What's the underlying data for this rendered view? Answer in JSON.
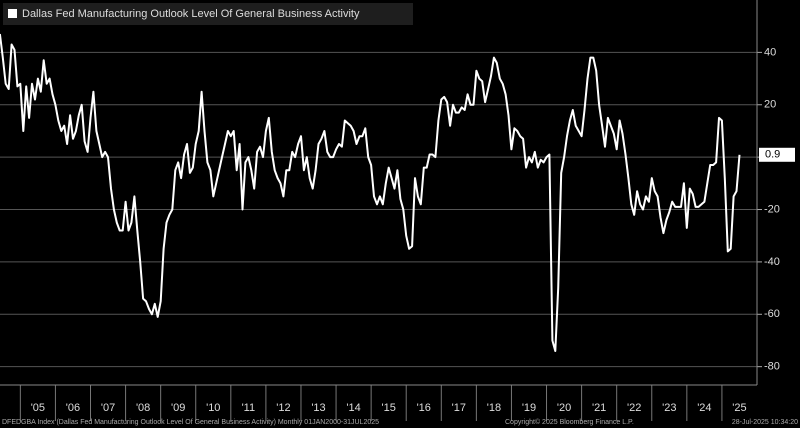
{
  "chart_data": {
    "type": "line",
    "series": [
      {
        "name": "Dallas Fed Manufacturing Outlook Level Of General Business Activity",
        "color": "#ffffff",
        "values": [
          47,
          38,
          28,
          26,
          43,
          41,
          27,
          28,
          10,
          27,
          15,
          28,
          22,
          30,
          25,
          37,
          28,
          30,
          24,
          20,
          14,
          10,
          12,
          5,
          16,
          7,
          10,
          16,
          20,
          6,
          2,
          15,
          25,
          10,
          5,
          0,
          2,
          0,
          -12,
          -20,
          -25,
          -28,
          -28,
          -17,
          -28,
          -25,
          -15,
          -28,
          -40,
          -54,
          -55,
          -58,
          -60,
          -56,
          -61,
          -55,
          -35,
          -25,
          -22,
          -20,
          -5,
          -2,
          -8,
          1,
          5,
          -6,
          -4,
          5,
          10,
          25,
          10,
          -2,
          -5,
          -15,
          -10,
          -5,
          0,
          5,
          10,
          8,
          10,
          -5,
          5,
          -20,
          -2,
          0,
          -5,
          -12,
          2,
          4,
          0,
          10,
          15,
          2,
          -5,
          -8,
          -10,
          -15,
          -5,
          -5,
          2,
          0,
          5,
          8,
          -5,
          0,
          -8,
          -12,
          -5,
          5,
          7,
          10,
          2,
          0,
          0,
          3,
          5,
          4,
          14,
          13,
          12,
          10,
          5,
          8,
          8,
          11,
          0,
          -3,
          -15,
          -18,
          -15,
          -18,
          -10,
          -4,
          -8,
          -12,
          -5,
          -16,
          -20,
          -30,
          -35,
          -34,
          -8,
          -15,
          -18,
          -4,
          -4,
          1,
          1,
          0,
          14,
          22,
          23,
          21,
          12,
          20,
          17,
          17,
          19,
          18,
          24,
          20,
          20,
          33,
          30,
          29,
          21,
          26,
          31,
          38,
          36,
          30,
          28,
          24,
          16,
          3,
          11,
          10,
          8,
          7,
          -4,
          0,
          -2,
          2,
          -4,
          -1,
          -2,
          0,
          1,
          -70,
          -74,
          -50,
          -6,
          0,
          8,
          14,
          18,
          12,
          10,
          8,
          18,
          30,
          38,
          38,
          33,
          20,
          12,
          4,
          15,
          12,
          9,
          3,
          14,
          9,
          1,
          -8,
          -18,
          -22,
          -13,
          -18,
          -20,
          -15,
          -17,
          -8,
          -13,
          -15,
          -23,
          -29,
          -24,
          -21,
          -17,
          -19,
          -19,
          -19,
          -10,
          -27,
          -12,
          -14,
          -19,
          -19,
          -18,
          -17,
          -10,
          -3,
          -3,
          -2,
          15,
          14,
          -8,
          -36,
          -35,
          -15,
          -13,
          0.9
        ]
      }
    ],
    "x": [
      2004.417,
      2004.5,
      2004.583,
      2004.667,
      2004.75,
      2004.833,
      2004.917,
      2005,
      2005.083,
      2005.167,
      2005.25,
      2005.333,
      2005.417,
      2005.5,
      2005.583,
      2005.667,
      2005.75,
      2005.833,
      2005.917,
      2006,
      2006.083,
      2006.167,
      2006.25,
      2006.333,
      2006.417,
      2006.5,
      2006.583,
      2006.667,
      2006.75,
      2006.833,
      2006.917,
      2007,
      2007.083,
      2007.167,
      2007.25,
      2007.333,
      2007.417,
      2007.5,
      2007.583,
      2007.667,
      2007.75,
      2007.833,
      2007.917,
      2008,
      2008.083,
      2008.167,
      2008.25,
      2008.333,
      2008.417,
      2008.5,
      2008.583,
      2008.667,
      2008.75,
      2008.833,
      2008.917,
      2009,
      2009.083,
      2009.167,
      2009.25,
      2009.333,
      2009.417,
      2009.5,
      2009.583,
      2009.667,
      2009.75,
      2009.833,
      2009.917,
      2010,
      2010.083,
      2010.167,
      2010.25,
      2010.333,
      2010.417,
      2010.5,
      2010.583,
      2010.667,
      2010.75,
      2010.833,
      2010.917,
      2011,
      2011.083,
      2011.167,
      2011.25,
      2011.333,
      2011.417,
      2011.5,
      2011.583,
      2011.667,
      2011.75,
      2011.833,
      2011.917,
      2012,
      2012.083,
      2012.167,
      2012.25,
      2012.333,
      2012.417,
      2012.5,
      2012.583,
      2012.667,
      2012.75,
      2012.833,
      2012.917,
      2013,
      2013.083,
      2013.167,
      2013.25,
      2013.333,
      2013.417,
      2013.5,
      2013.583,
      2013.667,
      2013.75,
      2013.833,
      2013.917,
      2014,
      2014.083,
      2014.167,
      2014.25,
      2014.333,
      2014.417,
      2014.5,
      2014.583,
      2014.667,
      2014.75,
      2014.833,
      2014.917,
      2015,
      2015.083,
      2015.167,
      2015.25,
      2015.333,
      2015.417,
      2015.5,
      2015.583,
      2015.667,
      2015.75,
      2015.833,
      2015.917,
      2016,
      2016.083,
      2016.167,
      2016.25,
      2016.333,
      2016.417,
      2016.5,
      2016.583,
      2016.667,
      2016.75,
      2016.833,
      2016.917,
      2017,
      2017.083,
      2017.167,
      2017.25,
      2017.333,
      2017.417,
      2017.5,
      2017.583,
      2017.667,
      2017.75,
      2017.833,
      2017.917,
      2018,
      2018.083,
      2018.167,
      2018.25,
      2018.333,
      2018.417,
      2018.5,
      2018.583,
      2018.667,
      2018.75,
      2018.833,
      2018.917,
      2019,
      2019.083,
      2019.167,
      2019.25,
      2019.333,
      2019.417,
      2019.5,
      2019.583,
      2019.667,
      2019.75,
      2019.833,
      2019.917,
      2020,
      2020.083,
      2020.167,
      2020.25,
      2020.333,
      2020.417,
      2020.5,
      2020.583,
      2020.667,
      2020.75,
      2020.833,
      2020.917,
      2021,
      2021.083,
      2021.167,
      2021.25,
      2021.333,
      2021.417,
      2021.5,
      2021.583,
      2021.667,
      2021.75,
      2021.833,
      2021.917,
      2022,
      2022.083,
      2022.167,
      2022.25,
      2022.333,
      2022.417,
      2022.5,
      2022.583,
      2022.667,
      2022.75,
      2022.833,
      2022.917,
      2023,
      2023.083,
      2023.167,
      2023.25,
      2023.333,
      2023.417,
      2023.5,
      2023.583,
      2023.667,
      2023.75,
      2023.833,
      2023.917,
      2024,
      2024.083,
      2024.167,
      2024.25,
      2024.333,
      2024.417,
      2024.5,
      2024.583,
      2024.667,
      2024.75,
      2024.833,
      2024.917,
      2025,
      2025.083,
      2025.167,
      2025.25,
      2025.333,
      2025.417,
      2025.5
    ],
    "xlim": [
      2004.42,
      2026
    ],
    "xticks": [
      {
        "value": 2005,
        "label": "'05"
      },
      {
        "value": 2006,
        "label": "'06"
      },
      {
        "value": 2007,
        "label": "'07"
      },
      {
        "value": 2008,
        "label": "'08"
      },
      {
        "value": 2009,
        "label": "'09"
      },
      {
        "value": 2010,
        "label": "'10"
      },
      {
        "value": 2011,
        "label": "'11"
      },
      {
        "value": 2012,
        "label": "'12"
      },
      {
        "value": 2013,
        "label": "'13"
      },
      {
        "value": 2014,
        "label": "'14"
      },
      {
        "value": 2015,
        "label": "'15"
      },
      {
        "value": 2016,
        "label": "'16"
      },
      {
        "value": 2017,
        "label": "'17"
      },
      {
        "value": 2018,
        "label": "'18"
      },
      {
        "value": 2019,
        "label": "'19"
      },
      {
        "value": 2020,
        "label": "'20"
      },
      {
        "value": 2021,
        "label": "'21"
      },
      {
        "value": 2022,
        "label": "'22"
      },
      {
        "value": 2023,
        "label": "'23"
      },
      {
        "value": 2024,
        "label": "'24"
      },
      {
        "value": 2025,
        "label": "'25"
      }
    ],
    "ylim": [
      -87,
      60
    ],
    "yticks": [
      -80,
      -60,
      -40,
      -20,
      0,
      20,
      40
    ],
    "grid": true
  },
  "footer": {
    "left": "DFEDGBA Index (Dallas Fed Manufacturing Outlook Level Of General Business Activity)  Monthly 01JAN2000-31JUL2025",
    "center": "Copyright© 2025 Bloomberg Finance L.P.",
    "right": "28-Jul-2025 10:34:20"
  }
}
